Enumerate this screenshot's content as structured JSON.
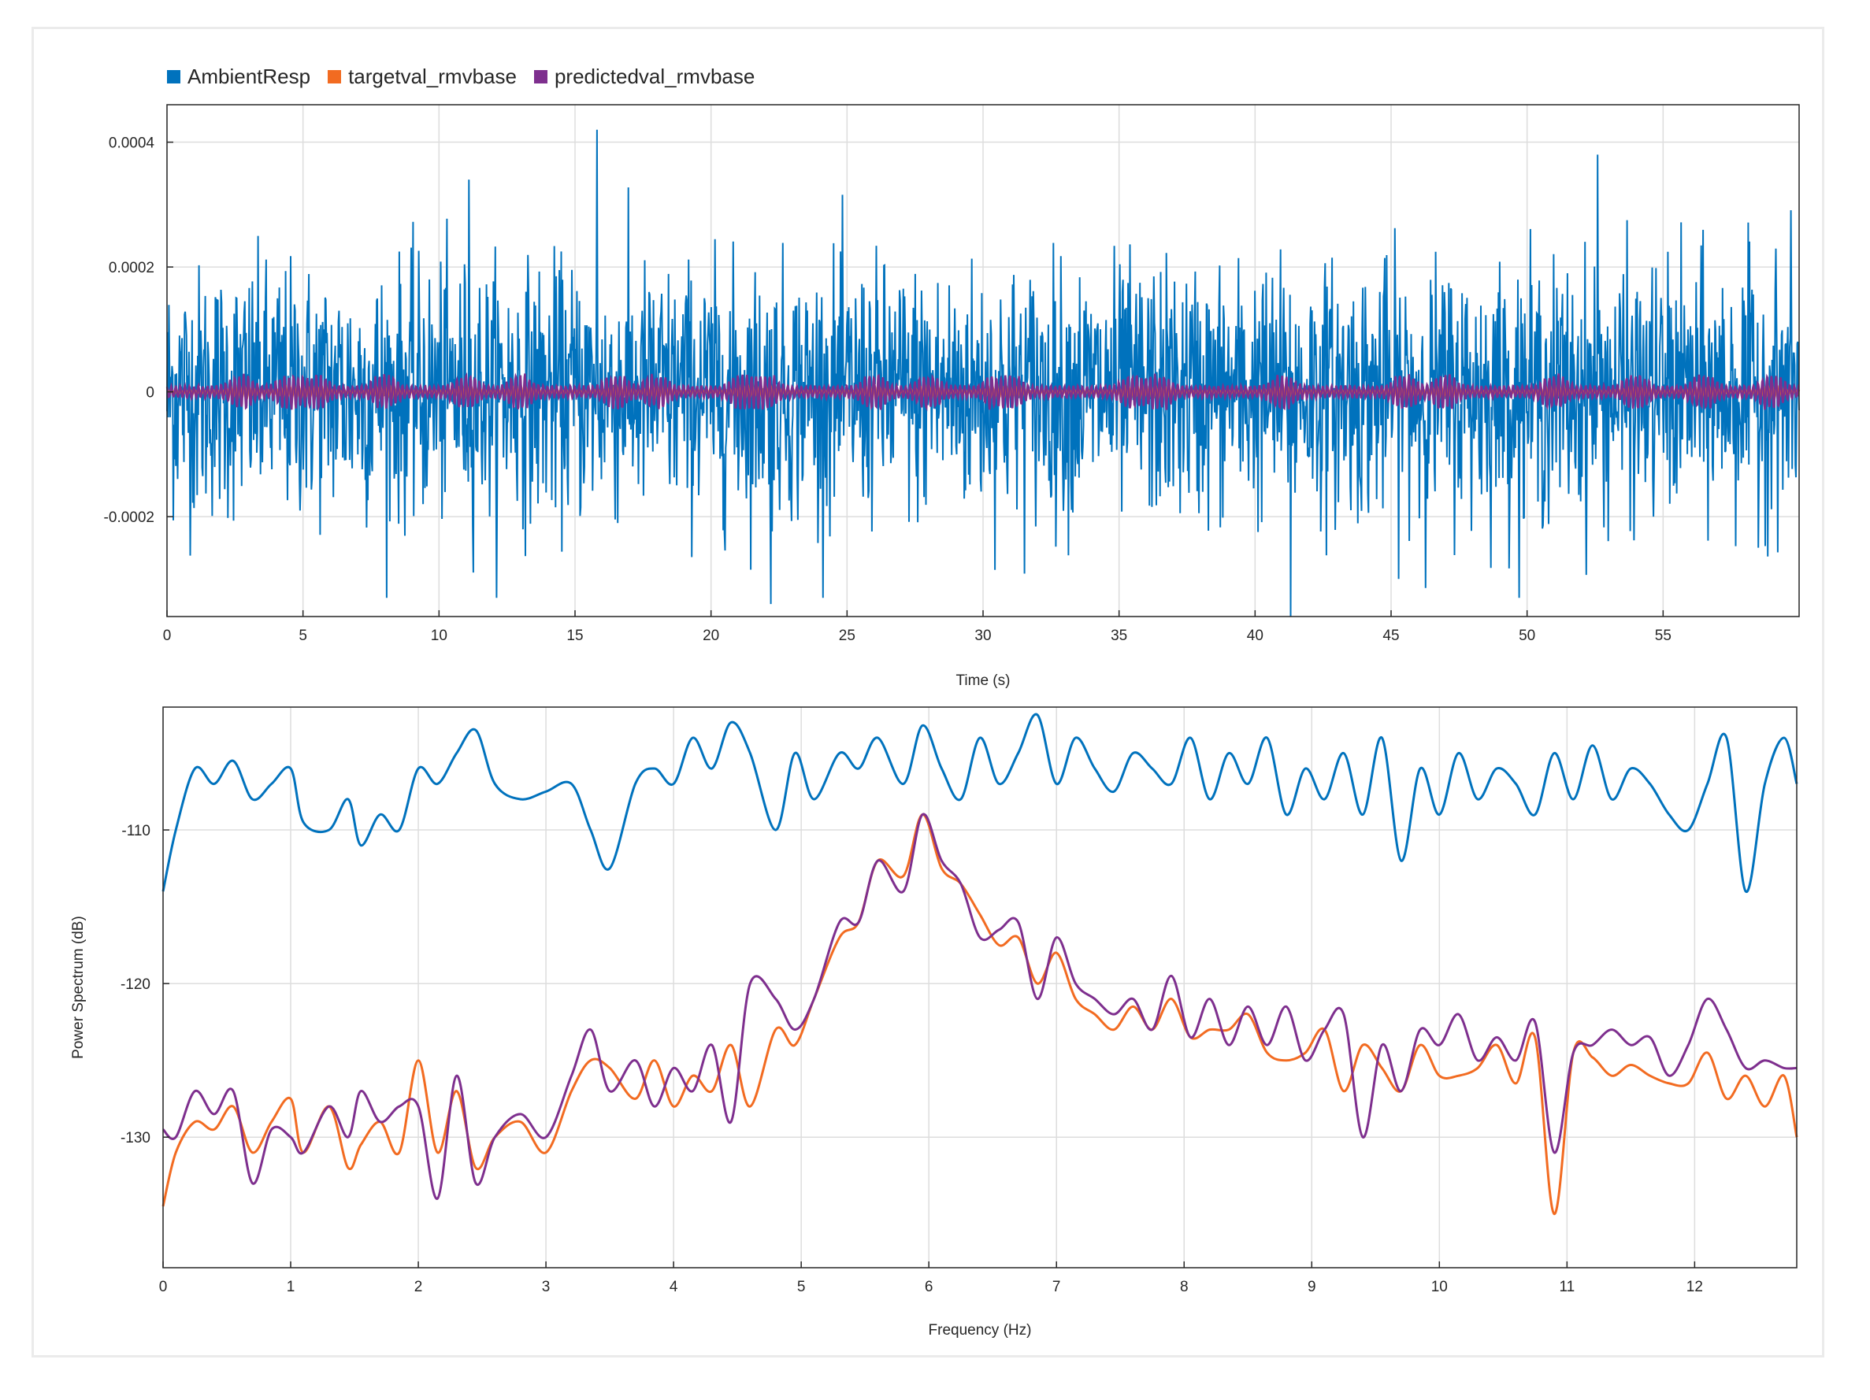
{
  "colors": {
    "blue": "#0072bd",
    "orange": "#f26b21",
    "purple": "#7e2f8e",
    "grid": "#dddddd",
    "axis": "#262626"
  },
  "legend": {
    "items": [
      {
        "label": "AmbientResp",
        "color": "#0072bd"
      },
      {
        "label": "targetval_rmvbase",
        "color": "#f26b21"
      },
      {
        "label": "predictedval_rmvbase",
        "color": "#7e2f8e"
      }
    ]
  },
  "chart_data": [
    {
      "type": "line",
      "title": "",
      "xlabel": "Time (s)",
      "ylabel": "",
      "xlim": [
        0,
        60
      ],
      "ylim": [
        -0.00036,
        0.00046
      ],
      "xticks": [
        0,
        5,
        10,
        15,
        20,
        25,
        30,
        35,
        40,
        45,
        50,
        55
      ],
      "xtick_labels": [
        "0",
        "5",
        "10",
        "15",
        "20",
        "25",
        "30",
        "35",
        "40",
        "45",
        "50",
        "55"
      ],
      "yticks": [
        -0.0002,
        0,
        0.0002,
        0.0004
      ],
      "ytick_labels": [
        "-0.0002",
        "0",
        "0.0002",
        "0.0004"
      ],
      "grid": true,
      "legend": "top-left, outside",
      "series": [
        {
          "name": "AmbientResp",
          "color": "#0072bd",
          "description_values": {
            "approx_std": 0.0001,
            "min": -0.00036,
            "max": 0.00042,
            "peaks": [
              [
                15.8,
                0.00042
              ],
              [
                41.3,
                -0.00036
              ],
              [
                52.6,
                0.00038
              ],
              [
                22.2,
                -0.00034
              ],
              [
                11.1,
                0.00034
              ]
            ]
          }
        },
        {
          "name": "targetval_rmvbase",
          "color": "#f26b21",
          "description_values": {
            "approx_amplitude": 1.2e-05
          }
        },
        {
          "name": "predictedval_rmvbase",
          "color": "#7e2f8e",
          "description_values": {
            "approx_amplitude": 3e-05
          }
        }
      ]
    },
    {
      "type": "line",
      "title": "",
      "xlabel": "Frequency (Hz)",
      "ylabel": "Power Spectrum (dB)",
      "xlim": [
        0,
        12.8
      ],
      "ylim": [
        -138.5,
        -102
      ],
      "xticks": [
        0,
        1,
        2,
        3,
        4,
        5,
        6,
        7,
        8,
        9,
        10,
        11,
        12
      ],
      "xtick_labels": [
        "0",
        "1",
        "2",
        "3",
        "4",
        "5",
        "6",
        "7",
        "8",
        "9",
        "10",
        "11",
        "12"
      ],
      "yticks": [
        -130,
        -120,
        -110
      ],
      "ytick_labels": [
        "-130",
        "-120",
        "-110"
      ],
      "grid": true,
      "series": [
        {
          "name": "AmbientResp",
          "color": "#0072bd",
          "x": [
            0,
            0.1,
            0.25,
            0.4,
            0.55,
            0.7,
            0.85,
            1.0,
            1.1,
            1.3,
            1.45,
            1.55,
            1.7,
            1.85,
            2.0,
            2.15,
            2.3,
            2.45,
            2.6,
            2.8,
            3.0,
            3.2,
            3.35,
            3.5,
            3.7,
            3.85,
            4.0,
            4.15,
            4.3,
            4.45,
            4.6,
            4.8,
            4.95,
            5.1,
            5.3,
            5.45,
            5.6,
            5.8,
            5.95,
            6.1,
            6.25,
            6.4,
            6.55,
            6.7,
            6.85,
            7.0,
            7.15,
            7.3,
            7.45,
            7.6,
            7.75,
            7.9,
            8.05,
            8.2,
            8.35,
            8.5,
            8.65,
            8.8,
            8.95,
            9.1,
            9.25,
            9.4,
            9.55,
            9.7,
            9.85,
            10.0,
            10.15,
            10.3,
            10.45,
            10.6,
            10.75,
            10.9,
            11.05,
            11.2,
            11.35,
            11.5,
            11.65,
            11.8,
            11.95,
            12.1,
            12.25,
            12.4,
            12.55,
            12.7,
            12.8
          ],
          "y": [
            -114,
            -110,
            -106,
            -107,
            -105.5,
            -108,
            -107,
            -106,
            -109.5,
            -110,
            -108,
            -111,
            -109,
            -110,
            -106,
            -107,
            -105,
            -103.5,
            -107,
            -108,
            -107.5,
            -107,
            -110,
            -112.5,
            -107,
            -106,
            -107,
            -104,
            -106,
            -103,
            -105,
            -110,
            -105,
            -108,
            -105,
            -106,
            -104,
            -107,
            -103.2,
            -106,
            -108,
            -104,
            -107,
            -105,
            -102.5,
            -107,
            -104,
            -106,
            -107.5,
            -105,
            -106,
            -107,
            -104,
            -108,
            -105,
            -107,
            -104,
            -109,
            -106,
            -108,
            -105,
            -109,
            -104,
            -112,
            -106,
            -109,
            -105,
            -108,
            -106,
            -107,
            -109,
            -105,
            -108,
            -104.5,
            -108,
            -106,
            -107,
            -109,
            -110,
            -107,
            -104,
            -114,
            -107,
            -104,
            -107
          ]
        },
        {
          "name": "targetval_rmvbase",
          "color": "#f26b21",
          "x": [
            0,
            0.1,
            0.25,
            0.4,
            0.55,
            0.7,
            0.85,
            1.0,
            1.1,
            1.3,
            1.45,
            1.55,
            1.7,
            1.85,
            2.0,
            2.15,
            2.3,
            2.45,
            2.6,
            2.8,
            3.0,
            3.2,
            3.35,
            3.5,
            3.7,
            3.85,
            4.0,
            4.15,
            4.3,
            4.45,
            4.6,
            4.8,
            4.95,
            5.1,
            5.3,
            5.45,
            5.6,
            5.8,
            5.95,
            6.1,
            6.25,
            6.4,
            6.55,
            6.7,
            6.85,
            7.0,
            7.15,
            7.3,
            7.45,
            7.6,
            7.75,
            7.9,
            8.05,
            8.2,
            8.35,
            8.5,
            8.65,
            8.8,
            8.95,
            9.1,
            9.25,
            9.4,
            9.55,
            9.7,
            9.85,
            10.0,
            10.15,
            10.3,
            10.45,
            10.6,
            10.75,
            10.9,
            11.05,
            11.2,
            11.35,
            11.5,
            11.65,
            11.8,
            11.95,
            12.1,
            12.25,
            12.4,
            12.55,
            12.7,
            12.8
          ],
          "y": [
            -134.5,
            -131,
            -129,
            -129.5,
            -128,
            -131,
            -129,
            -127.5,
            -131,
            -128,
            -132,
            -130.5,
            -129,
            -131,
            -125,
            -131,
            -127,
            -132,
            -130,
            -129,
            -131,
            -127,
            -125,
            -125.5,
            -127.5,
            -125,
            -128,
            -126,
            -127,
            -124,
            -128,
            -123,
            -124,
            -121,
            -117,
            -116,
            -112,
            -113,
            -109,
            -112.5,
            -113.5,
            -115.5,
            -117.5,
            -117,
            -120,
            -118,
            -121,
            -122,
            -123,
            -121.5,
            -123,
            -121,
            -123.5,
            -123,
            -123,
            -122,
            -124.5,
            -125,
            -124.5,
            -123,
            -127,
            -124,
            -125.5,
            -127,
            -124,
            -126,
            -126,
            -125.5,
            -124,
            -126.5,
            -123.5,
            -135,
            -124.5,
            -124.8,
            -126,
            -125.3,
            -126,
            -126.5,
            -126.5,
            -124.5,
            -127.5,
            -126,
            -128,
            -126,
            -130
          ]
        },
        {
          "name": "predictedval_rmvbase",
          "color": "#7e2f8e",
          "x": [
            0,
            0.1,
            0.25,
            0.4,
            0.55,
            0.7,
            0.85,
            1.0,
            1.1,
            1.3,
            1.45,
            1.55,
            1.7,
            1.85,
            2.0,
            2.15,
            2.3,
            2.45,
            2.6,
            2.8,
            3.0,
            3.2,
            3.35,
            3.5,
            3.7,
            3.85,
            4.0,
            4.15,
            4.3,
            4.45,
            4.6,
            4.8,
            4.95,
            5.1,
            5.3,
            5.45,
            5.6,
            5.8,
            5.95,
            6.1,
            6.25,
            6.4,
            6.55,
            6.7,
            6.85,
            7.0,
            7.15,
            7.3,
            7.45,
            7.6,
            7.75,
            7.9,
            8.05,
            8.2,
            8.35,
            8.5,
            8.65,
            8.8,
            8.95,
            9.1,
            9.25,
            9.4,
            9.55,
            9.7,
            9.85,
            10.0,
            10.15,
            10.3,
            10.45,
            10.6,
            10.75,
            10.9,
            11.05,
            11.2,
            11.35,
            11.5,
            11.65,
            11.8,
            11.95,
            12.1,
            12.25,
            12.4,
            12.55,
            12.7,
            12.8
          ],
          "y": [
            -129.5,
            -130,
            -127,
            -128.5,
            -127,
            -133,
            -129.5,
            -130,
            -131,
            -128,
            -130,
            -127,
            -129,
            -128,
            -128,
            -134,
            -126,
            -133,
            -130,
            -128.5,
            -130,
            -126,
            -123,
            -127,
            -125,
            -128,
            -125.5,
            -127,
            -124,
            -129,
            -120,
            -121,
            -123,
            -121,
            -116,
            -116,
            -112,
            -114,
            -109,
            -112,
            -113.5,
            -117,
            -116.5,
            -116,
            -121,
            -117,
            -120,
            -121,
            -122,
            -121,
            -123,
            -119.5,
            -123.5,
            -121,
            -124,
            -121.5,
            -124,
            -121.5,
            -125,
            -123,
            -122,
            -130,
            -124,
            -127,
            -123,
            -124,
            -122,
            -125,
            -123.5,
            -125,
            -122.5,
            -131,
            -124.5,
            -124,
            -123,
            -124,
            -123.5,
            -126,
            -124,
            -121,
            -123,
            -125.5,
            -125,
            -125.5,
            -125.5
          ]
        }
      ]
    }
  ]
}
